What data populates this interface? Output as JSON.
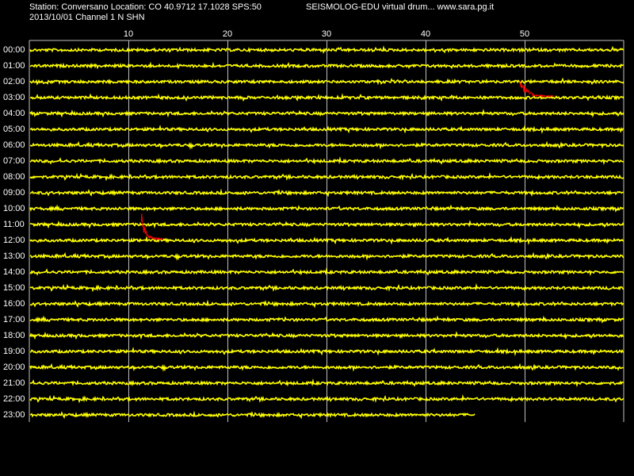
{
  "header": {
    "station_line": "Station: Conversano Location: CO 40.9712 17.1028 SPS:50",
    "app_line": "SEISMOLOG-EDU virtual drum... www.sara.pg.it",
    "date_line": "2013/10/01  Channel 1 N SHN"
  },
  "drum": {
    "x_unit": "minutes",
    "x_range": [
      0,
      60
    ],
    "x_ticks": [
      "10",
      "20",
      "30",
      "40",
      "50"
    ],
    "hours": [
      "00:00",
      "01:00",
      "02:00",
      "03:00",
      "04:00",
      "05:00",
      "06:00",
      "07:00",
      "08:00",
      "09:00",
      "10:00",
      "11:00",
      "12:00",
      "13:00",
      "14:00",
      "15:00",
      "16:00",
      "17:00",
      "18:00",
      "19:00",
      "20:00",
      "21:00",
      "22:00",
      "23:00"
    ],
    "last_hour_end_minute": 45,
    "events": [
      {
        "name": "event-03h",
        "hour": "03:00",
        "start_minute": 49.5,
        "end_minute": 53,
        "peak_rows": 1.5
      },
      {
        "name": "event-12h",
        "hour": "12:00",
        "start_minute": 11.3,
        "end_minute": 13.5,
        "peak_rows": 1.8
      }
    ],
    "colors": {
      "background": "#000000",
      "trace": "#ffff00",
      "event": "#ff0000",
      "grid": "#c0c0c0",
      "text": "#ffffff"
    }
  }
}
